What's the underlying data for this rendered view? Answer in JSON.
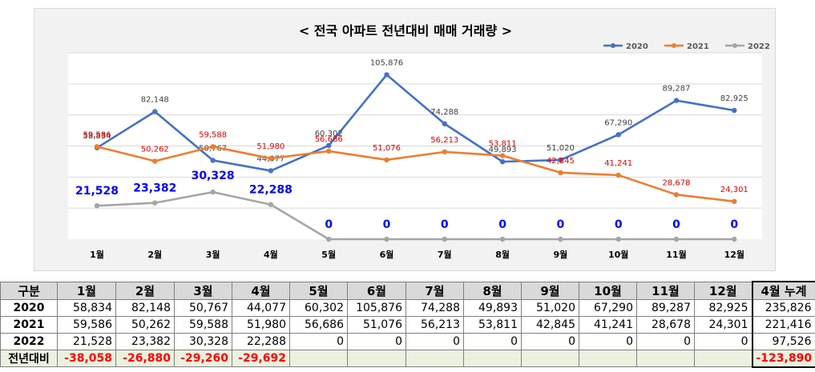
{
  "chart_data": {
    "type": "line",
    "title": "< 전국 아파트 전년대비 매매 거래량 >",
    "categories": [
      "1월",
      "2월",
      "3월",
      "4월",
      "5월",
      "6월",
      "7월",
      "8월",
      "9월",
      "10월",
      "11월",
      "12월"
    ],
    "ylim": [
      0,
      120000
    ],
    "grid": true,
    "legend_position": "top-right",
    "series": [
      {
        "name": "2020",
        "color": "#4472c4",
        "values": [
          58834,
          82148,
          50767,
          44077,
          60302,
          105876,
          74288,
          49893,
          51020,
          67290,
          89287,
          82925
        ],
        "labels": [
          "58,834",
          "82,148",
          "50,767",
          "44,077",
          "60,302",
          "105,876",
          "74,288",
          "49,893",
          "51,020",
          "67,290",
          "89,287",
          "82,925"
        ]
      },
      {
        "name": "2021",
        "color": "#ed7d31",
        "values": [
          59586,
          50262,
          59588,
          51980,
          56686,
          51076,
          56213,
          53811,
          42845,
          41241,
          28678,
          24301
        ],
        "labels": [
          "59,586",
          "50,262",
          "59,588",
          "51,980",
          "56,686",
          "51,076",
          "56,213",
          "53,811",
          "42,845",
          "41,241",
          "28,678",
          "24,301"
        ]
      },
      {
        "name": "2022",
        "color": "#a5a5a5",
        "values": [
          21528,
          23382,
          30328,
          22288,
          0,
          0,
          0,
          0,
          0,
          0,
          0,
          0
        ],
        "labels": [
          "21,528",
          "23,382",
          "30,328",
          "22,288",
          "0",
          "0",
          "0",
          "0",
          "0",
          "0",
          "0",
          "0"
        ]
      }
    ]
  },
  "table": {
    "header": [
      "구분",
      "1월",
      "2월",
      "3월",
      "4월",
      "5월",
      "6월",
      "7월",
      "8월",
      "9월",
      "10월",
      "11월",
      "12월",
      "4월 누계"
    ],
    "rows": [
      {
        "label": "2020",
        "cells": [
          "58,834",
          "82,148",
          "50,767",
          "44,077",
          "60,302",
          "105,876",
          "74,288",
          "49,893",
          "51,020",
          "67,290",
          "89,287",
          "82,925",
          "235,826"
        ]
      },
      {
        "label": "2021",
        "cells": [
          "59,586",
          "50,262",
          "59,588",
          "51,980",
          "56,686",
          "51,076",
          "56,213",
          "53,811",
          "42,845",
          "41,241",
          "28,678",
          "24,301",
          "221,416"
        ]
      },
      {
        "label": "2022",
        "cells": [
          "21,528",
          "23,382",
          "30,328",
          "22,288",
          "0",
          "0",
          "0",
          "0",
          "0",
          "0",
          "0",
          "0",
          "97,526"
        ]
      },
      {
        "label": "전년대비",
        "cells": [
          "-38,058",
          "-26,880",
          "-29,260",
          "-29,692",
          "",
          "",
          "",
          "",
          "",
          "",
          "",
          "",
          "-123,890"
        ]
      }
    ]
  }
}
